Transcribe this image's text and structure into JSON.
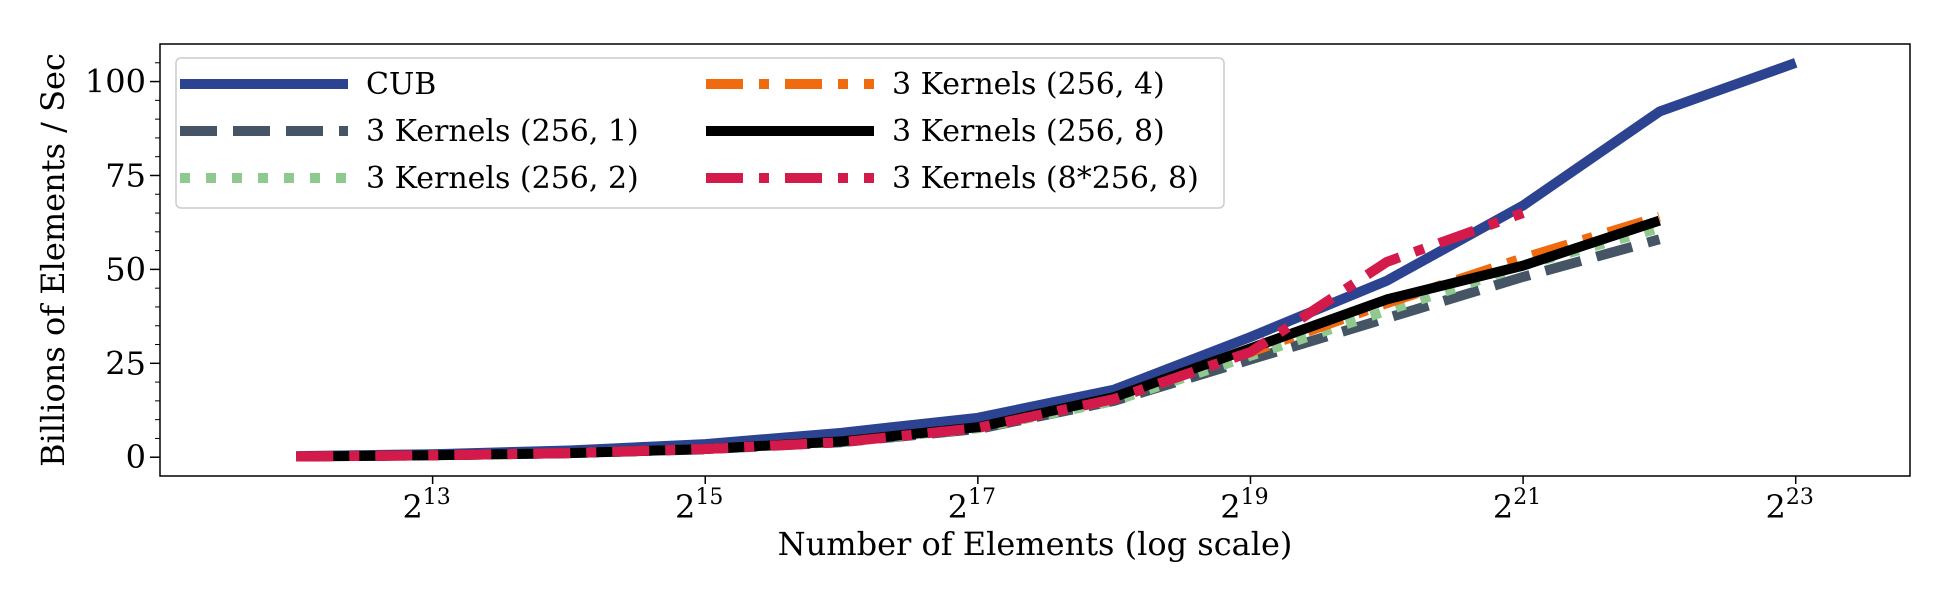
{
  "chart_data": {
    "type": "line",
    "xlabel": "Number of Elements (log scale)",
    "ylabel": "Billions of Elements / Sec",
    "xscale": "log2",
    "xlim": [
      2048,
      15000000
    ],
    "ylim": [
      -5,
      110
    ],
    "grid": false,
    "legend_placement": "top-left",
    "x_ticks": [
      {
        "base": "2",
        "exp": "13",
        "value": 8192
      },
      {
        "base": "2",
        "exp": "15",
        "value": 32768
      },
      {
        "base": "2",
        "exp": "17",
        "value": 131072
      },
      {
        "base": "2",
        "exp": "19",
        "value": 524288
      },
      {
        "base": "2",
        "exp": "21",
        "value": 2097152
      },
      {
        "base": "2",
        "exp": "23",
        "value": 8388608
      }
    ],
    "y_ticks": [
      {
        "label": "0",
        "value": 0
      },
      {
        "label": "25",
        "value": 25
      },
      {
        "label": "50",
        "value": 50
      },
      {
        "label": "75",
        "value": 75
      },
      {
        "label": "100",
        "value": 100
      }
    ],
    "series": [
      {
        "name": "CUB",
        "color": "#2b4390",
        "dash": "solid",
        "width": 10,
        "x": [
          4096,
          8192,
          16384,
          32768,
          65536,
          131072,
          262144,
          524288,
          1048576,
          2097152,
          4194304,
          8388608
        ],
        "y": [
          0.3,
          0.8,
          1.8,
          3.5,
          6.5,
          10.5,
          18,
          32,
          47,
          67,
          92,
          105
        ]
      },
      {
        "name": "3 Kernels (256, 1)",
        "color": "#455565",
        "dash": "longdash",
        "width": 10,
        "x": [
          4096,
          8192,
          16384,
          32768,
          65536,
          131072,
          262144,
          524288,
          1048576,
          2097152,
          4194304
        ],
        "y": [
          0.2,
          0.5,
          1.1,
          2.1,
          4,
          7.5,
          15,
          26,
          37,
          48,
          58
        ]
      },
      {
        "name": "3 Kernels (256, 2)",
        "color": "#8fc98e",
        "dash": "dot",
        "width": 10,
        "x": [
          4096,
          8192,
          16384,
          32768,
          65536,
          131072,
          262144,
          524288,
          1048576,
          2097152,
          4194304
        ],
        "y": [
          0.2,
          0.5,
          1.1,
          2.2,
          4.1,
          7.7,
          15,
          27,
          39,
          51,
          61
        ]
      },
      {
        "name": "3 Kernels (256, 4)",
        "color": "#f06a0f",
        "dash": "dashdot",
        "width": 10,
        "x": [
          4096,
          8192,
          16384,
          32768,
          65536,
          131072,
          262144,
          524288,
          1048576,
          2097152,
          4194304
        ],
        "y": [
          0.2,
          0.5,
          1.1,
          2.2,
          4.2,
          7.8,
          15.5,
          28,
          41,
          53,
          64
        ]
      },
      {
        "name": "3 Kernels (256, 8)",
        "color": "#000000",
        "dash": "solid",
        "width": 10,
        "x": [
          4096,
          8192,
          16384,
          32768,
          65536,
          131072,
          262144,
          524288,
          1048576,
          2097152,
          4194304
        ],
        "y": [
          0.2,
          0.5,
          1.1,
          2.2,
          4.2,
          8,
          16,
          29,
          42,
          51,
          63
        ]
      },
      {
        "name": "3 Kernels (8*256, 8)",
        "color": "#d41a4b",
        "dash": "dashdot",
        "width": 10,
        "x": [
          4096,
          8192,
          16384,
          32768,
          65536,
          131072,
          262144,
          524288,
          1048576,
          2097152
        ],
        "y": [
          0.2,
          0.5,
          1.1,
          2.2,
          4,
          7.8,
          15.5,
          28,
          52,
          65
        ]
      }
    ]
  }
}
